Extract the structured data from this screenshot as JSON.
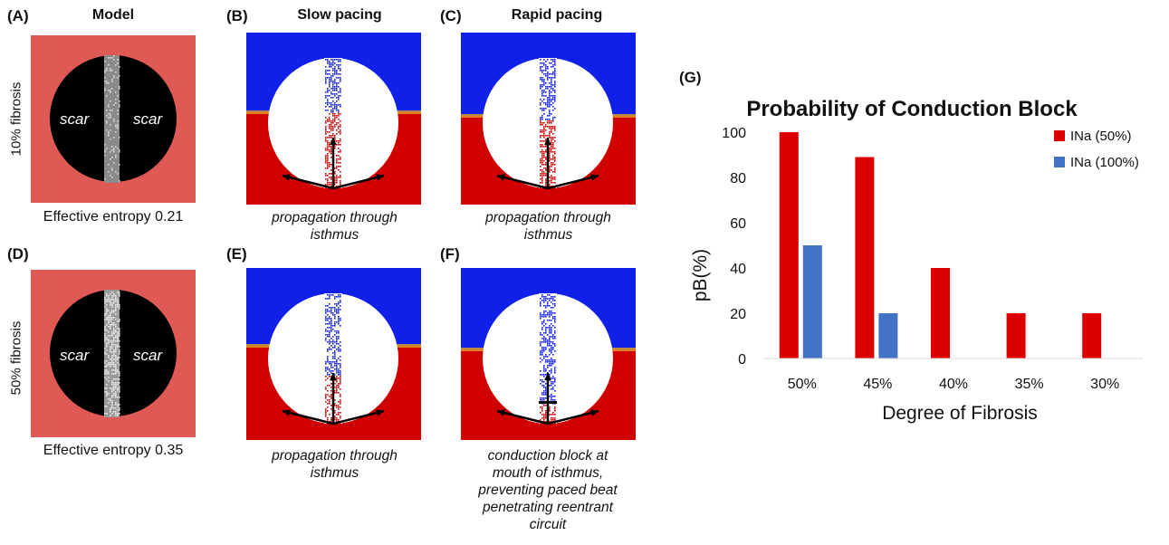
{
  "panels": {
    "A": "(A)",
    "B": "(B)",
    "C": "(C)",
    "D": "(D)",
    "E": "(E)",
    "F": "(F)",
    "G": "(G)"
  },
  "columns": {
    "model": "Model",
    "slow": "Slow pacing",
    "rapid": "Rapid pacing"
  },
  "rows": {
    "top_label": "10% fibrosis",
    "bottom_label": "50% fibrosis"
  },
  "model_panels": {
    "scar_label": "scar",
    "top_entropy": "Effective entropy 0.21",
    "bottom_entropy": "Effective entropy 0.35"
  },
  "captions": {
    "B_line1": "propagation through",
    "B_line2": "isthmus",
    "C_line1": "propagation through",
    "C_line2": "isthmus",
    "E_line1": "propagation through",
    "E_line2": "isthmus",
    "F_line1": "conduction block at",
    "F_line2": "mouth of isthmus,",
    "F_line3": "preventing paced beat",
    "F_line4": "penetrating reentrant",
    "F_line5": "circuit"
  },
  "colors": {
    "model_bg": "#e05a55",
    "scar": "#000000",
    "activated": "#d00000",
    "resting": "#1020e8",
    "series_50": "#dd0000",
    "series_100": "#4472c4"
  },
  "chart_data": {
    "type": "bar",
    "title": "Probability of Conduction Block",
    "xlabel": "Degree of Fibrosis",
    "ylabel": "pB(%)",
    "ylim": [
      0,
      100
    ],
    "yticks": [
      "0",
      "20",
      "40",
      "60",
      "80",
      "100"
    ],
    "categories": [
      "50%",
      "45%",
      "40%",
      "35%",
      "30%"
    ],
    "series": [
      {
        "name": "INa (50%)",
        "values": [
          100,
          89,
          40,
          20,
          20
        ]
      },
      {
        "name": "INa (100%)",
        "values": [
          50,
          20,
          0,
          0,
          0
        ]
      }
    ],
    "legend": "top-right",
    "grid": false
  }
}
